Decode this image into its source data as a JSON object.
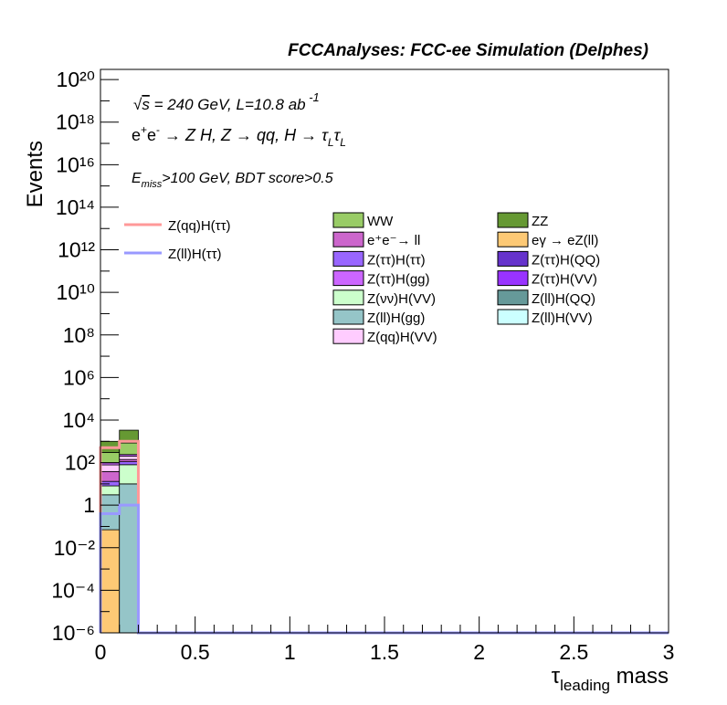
{
  "header": "FCCAnalyses: FCC-ee Simulation (Delphes)",
  "annotations": {
    "line1": "√s = 240 GeV, L=10.8 ab⁻¹",
    "line2": "e⁺e⁻ → Z H, Z → qq, H → τ_L τ_L",
    "line3": "E_miss>100 GeV, BDT score>0.5"
  },
  "chart_data": {
    "type": "bar",
    "stacked": true,
    "log_y": true,
    "xlabel": "τ_leading mass",
    "ylabel": "Events",
    "xlim": [
      0,
      3
    ],
    "ylim": [
      1e-06,
      3e+20
    ],
    "bin_width": 0.1,
    "x_ticks": [
      "0",
      "0.5",
      "1",
      "1.5",
      "2",
      "2.5",
      "3"
    ],
    "y_ticks": [
      "10⁻⁶",
      "10⁻⁴",
      "10⁻²",
      "1",
      "10²",
      "10⁴",
      "10⁶",
      "10⁸",
      "10¹⁰",
      "10¹²",
      "10¹⁴",
      "10¹⁶",
      "10¹⁸",
      "10²⁰"
    ],
    "categories": [
      "0-0.1",
      "0.1-0.2"
    ],
    "stack_series": [
      {
        "name": "eγ → eZ(ll)",
        "color": "#fdc975",
        "values": [
          0.07,
          0
        ]
      },
      {
        "name": "Z(ll)H(gg)",
        "color": "#95c5c8",
        "values": [
          3,
          10
        ]
      },
      {
        "name": "Z(νν)H(VV)",
        "color": "#ccffcc",
        "values": [
          5,
          70
        ]
      },
      {
        "name": "Z(ττ)H(ττ)",
        "color": "#9966ff",
        "values": [
          5,
          30
        ]
      },
      {
        "name": "e⁺e⁻→ ll",
        "color": "#cc66cc",
        "values": [
          25,
          30
        ]
      },
      {
        "name": "Z(qq)H(VV)",
        "color": "#ffccff",
        "values": [
          40,
          60
        ]
      },
      {
        "name": "Z(ττ)H(gg)",
        "color": "#cc66ff",
        "values": [
          20,
          40
        ]
      },
      {
        "name": "WW",
        "color": "#99cc66",
        "values": [
          200,
          600
        ]
      },
      {
        "name": "ZZ",
        "color": "#669933",
        "values": [
          700,
          2500
        ]
      }
    ],
    "lines": [
      {
        "name": "Z(qq)H(ττ)",
        "color": "#ff9999",
        "values": [
          500,
          1000
        ]
      },
      {
        "name": "Z(ll)H(ττ)",
        "color": "#9999ff",
        "values": [
          0.4,
          1.0
        ]
      }
    ],
    "legend_left": [
      "Z(qq)H(ττ)",
      "Z(ll)H(ττ)"
    ],
    "legend_entries": [
      {
        "name": "WW",
        "color": "#99cc66"
      },
      {
        "name": "ZZ",
        "color": "#669933"
      },
      {
        "name": "e⁺e⁻→ ll",
        "color": "#cc66cc"
      },
      {
        "name": "eγ → eZ(ll)",
        "color": "#fdc975"
      },
      {
        "name": "Z(ττ)H(ττ)",
        "color": "#9966ff"
      },
      {
        "name": "Z(ττ)H(QQ)",
        "color": "#6633cc"
      },
      {
        "name": "Z(ττ)H(gg)",
        "color": "#cc66ff"
      },
      {
        "name": "Z(ττ)H(VV)",
        "color": "#9933ff"
      },
      {
        "name": "Z(νν)H(VV)",
        "color": "#ccffcc"
      },
      {
        "name": "Z(ll)H(QQ)",
        "color": "#669999"
      },
      {
        "name": "Z(ll)H(gg)",
        "color": "#95c5c8"
      },
      {
        "name": "Z(ll)H(VV)",
        "color": "#ccffff"
      },
      {
        "name": "Z(qq)H(VV)",
        "color": "#ffccff"
      }
    ]
  }
}
